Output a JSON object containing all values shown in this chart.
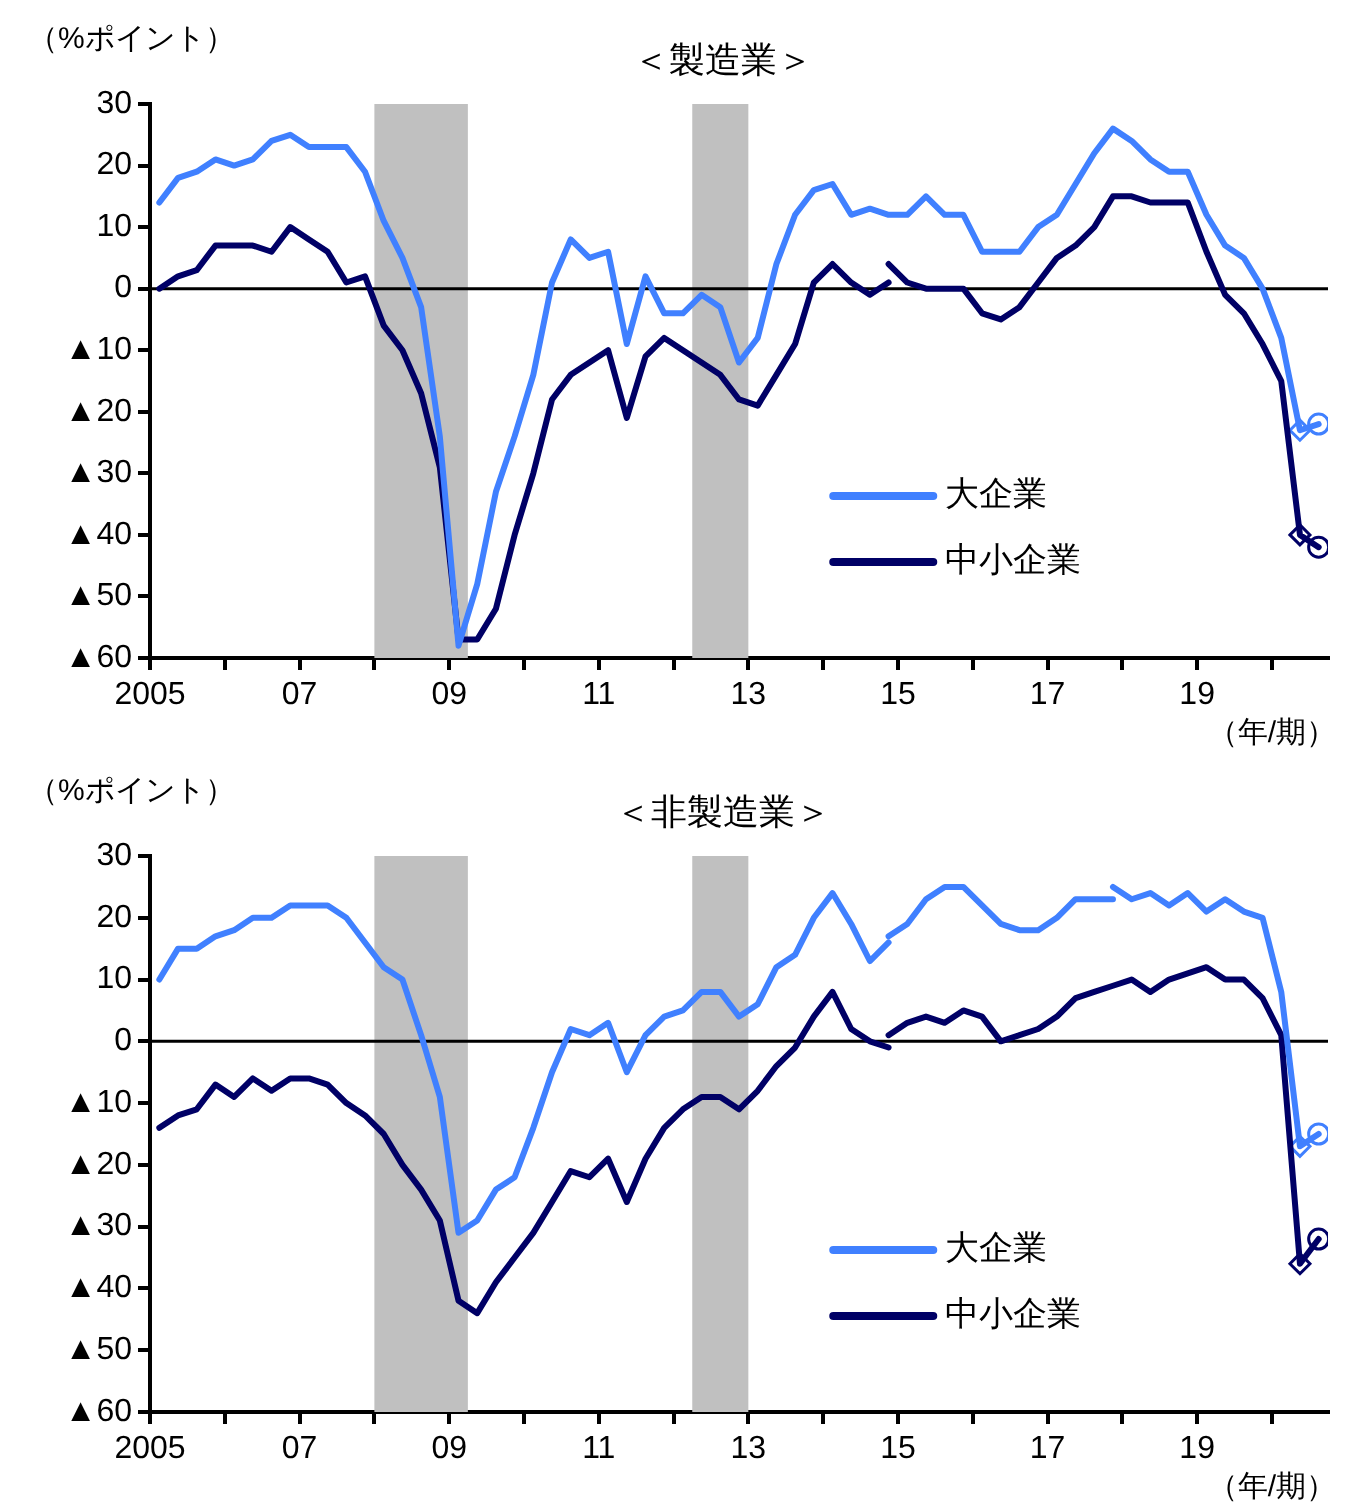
{
  "chart_data": [
    {
      "type": "line",
      "title": "＜製造業＞",
      "ylabel": "（%ポイント）",
      "xlabel": "（年/期）",
      "legend": "bottom right",
      "xlim": [
        2005,
        2020.75
      ],
      "xticks": [
        {
          "value": 2005,
          "label": "2005"
        },
        {
          "value": 2006,
          "label": null
        },
        {
          "value": 2007,
          "label": "07"
        },
        {
          "value": 2008,
          "label": null
        },
        {
          "value": 2009,
          "label": "09"
        },
        {
          "value": 2010,
          "label": null
        },
        {
          "value": 2011,
          "label": "11"
        },
        {
          "value": 2012,
          "label": null
        },
        {
          "value": 2013,
          "label": "13"
        },
        {
          "value": 2014,
          "label": null
        },
        {
          "value": 2015,
          "label": "15"
        },
        {
          "value": 2016,
          "label": null
        },
        {
          "value": 2017,
          "label": "17"
        },
        {
          "value": 2018,
          "label": null
        },
        {
          "value": 2019,
          "label": "19"
        },
        {
          "value": 2020,
          "label": null
        }
      ],
      "ylim": [
        -60,
        30
      ],
      "yticks": [
        30,
        20,
        10,
        0,
        {
          "value": -10,
          "label": "▲10"
        },
        {
          "value": -20,
          "label": "▲20"
        },
        {
          "value": -30,
          "label": "▲30"
        },
        {
          "value": -40,
          "label": "▲40"
        },
        {
          "value": -50,
          "label": "▲50"
        },
        {
          "value": -60,
          "label": "▲60"
        }
      ],
      "ref_lines": [
        {
          "axis": "y",
          "value": 0,
          "color": "#000000"
        }
      ],
      "bands": [
        {
          "axis": "x",
          "from": 2008,
          "to": 2009.25,
          "color": "#c0c0c0"
        },
        {
          "axis": "x",
          "from": 2012.25,
          "to": 2013,
          "color": "#c0c0c0"
        }
      ],
      "series": [
        {
          "name": "大企業",
          "color": "#4080ff",
          "x": [
            2005.125,
            2005.375,
            2005.625,
            2005.875,
            2006.125,
            2006.375,
            2006.625,
            2006.875,
            2007.125,
            2007.375,
            2007.625,
            2007.875,
            2008.125,
            2008.375,
            2008.625,
            2008.875,
            2009.125,
            2009.375,
            2009.625,
            2009.875,
            2010.125,
            2010.375,
            2010.625,
            2010.875,
            2011.125,
            2011.375,
            2011.625,
            2011.875,
            2012.125,
            2012.375,
            2012.625,
            2012.875,
            2013.125,
            2013.375,
            2013.625,
            2013.875,
            2014.125,
            2014.375,
            2014.625,
            2014.875,
            2015.125,
            2015.375,
            2015.625,
            2015.875,
            2016.125,
            2016.375,
            2016.625,
            2016.875,
            2017.125,
            2017.375,
            2017.625,
            2017.875,
            2018.125,
            2018.375,
            2018.625,
            2018.875,
            2019.125,
            2019.375,
            2019.625,
            2019.875,
            2020.125,
            2020.375,
            2020.625
          ],
          "values": [
            14,
            18,
            19,
            21,
            20,
            21,
            24,
            25,
            23,
            23,
            23,
            19,
            11,
            5,
            -3,
            -24,
            -58,
            -48,
            -33,
            -24,
            -14,
            1,
            8,
            5,
            6,
            -9,
            2,
            -4,
            -4,
            -1,
            -3,
            -12,
            -8,
            4,
            12,
            16,
            17,
            12,
            13,
            12,
            12,
            15,
            12,
            12,
            6,
            6,
            6,
            10,
            12,
            17,
            22,
            26,
            24,
            21,
            19,
            19,
            12,
            7,
            5,
            0,
            -8,
            -23,
            -22
          ]
        },
        {
          "name": "中小企業",
          "color": "#000066",
          "x": [
            2005.125,
            2005.375,
            2005.625,
            2005.875,
            2006.125,
            2006.375,
            2006.625,
            2006.875,
            2007.125,
            2007.375,
            2007.625,
            2007.875,
            2008.125,
            2008.375,
            2008.625,
            2008.875,
            2009.125,
            2009.375,
            2009.625,
            2009.875,
            2010.125,
            2010.375,
            2010.625,
            2010.875,
            2011.125,
            2011.375,
            2011.625,
            2011.875,
            2012.125,
            2012.375,
            2012.625,
            2012.875,
            2013.125,
            2013.375,
            2013.625,
            2013.875,
            2014.125,
            2014.375,
            2014.625,
            2014.875
          ],
          "values": [
            0,
            2,
            3,
            7,
            7,
            7,
            6,
            10,
            8,
            6,
            1,
            2,
            -6,
            -10,
            -17,
            -29,
            -57,
            -57,
            -52,
            -40,
            -30,
            -18,
            -14,
            -12,
            -10,
            -21,
            -11,
            -8,
            -10,
            -12,
            -14,
            -18,
            -19,
            -14,
            -9,
            1,
            4,
            1,
            -1,
            1
          ]
        },
        {
          "color": "#000066",
          "x": [
            2014.875,
            2015.125,
            2015.375,
            2015.625,
            2015.875,
            2016.125,
            2016.375,
            2016.625,
            2016.875,
            2017.125,
            2017.375,
            2017.625,
            2017.875,
            2018.125,
            2018.375,
            2018.625,
            2018.875,
            2019.125,
            2019.375,
            2019.625,
            2019.875,
            2020.125,
            2020.375,
            2020.625
          ],
          "values": [
            4,
            1,
            0,
            0,
            0,
            -4,
            -5,
            -3,
            1,
            5,
            7,
            10,
            15,
            15,
            14,
            14,
            14,
            6,
            -1,
            -4,
            -9,
            -15,
            -40,
            -42
          ]
        },
        {
          "type": "scatter",
          "marker": "diamond",
          "colors": [
            "#4080ff",
            "#000066"
          ],
          "x": [
            2020.375,
            2020.375
          ],
          "values": [
            -23,
            -40
          ]
        },
        {
          "type": "scatter",
          "marker": "circle",
          "colors": [
            "#4080ff",
            "#000066"
          ],
          "x": [
            2020.625,
            2020.625
          ],
          "values": [
            -22,
            -42
          ]
        }
      ]
    },
    {
      "type": "line",
      "title": "＜非製造業＞",
      "ylabel": "（%ポイント）",
      "xlabel": "（年/期）",
      "legend": "bottom right",
      "xlim": [
        2005,
        2020.75
      ],
      "xticks": [
        {
          "value": 2005,
          "label": "2005"
        },
        {
          "value": 2006,
          "label": null
        },
        {
          "value": 2007,
          "label": "07"
        },
        {
          "value": 2008,
          "label": null
        },
        {
          "value": 2009,
          "label": "09"
        },
        {
          "value": 2010,
          "label": null
        },
        {
          "value": 2011,
          "label": "11"
        },
        {
          "value": 2012,
          "label": null
        },
        {
          "value": 2013,
          "label": "13"
        },
        {
          "value": 2014,
          "label": null
        },
        {
          "value": 2015,
          "label": "15"
        },
        {
          "value": 2016,
          "label": null
        },
        {
          "value": 2017,
          "label": "17"
        },
        {
          "value": 2018,
          "label": null
        },
        {
          "value": 2019,
          "label": "19"
        },
        {
          "value": 2020,
          "label": null
        }
      ],
      "ylim": [
        -60,
        30
      ],
      "yticks": [
        30,
        20,
        10,
        0,
        {
          "value": -10,
          "label": "▲10"
        },
        {
          "value": -20,
          "label": "▲20"
        },
        {
          "value": -30,
          "label": "▲30"
        },
        {
          "value": -40,
          "label": "▲40"
        },
        {
          "value": -50,
          "label": "▲50"
        },
        {
          "value": -60,
          "label": "▲60"
        }
      ],
      "ref_lines": [
        {
          "axis": "y",
          "value": 0,
          "color": "#000000"
        }
      ],
      "bands": [
        {
          "axis": "x",
          "from": 2008,
          "to": 2009.25,
          "color": "#c0c0c0"
        },
        {
          "axis": "x",
          "from": 2012.25,
          "to": 2013,
          "color": "#c0c0c0"
        }
      ],
      "series": [
        {
          "name": "大企業",
          "color": "#4080ff",
          "x": [
            2005.125,
            2005.375,
            2005.625,
            2005.875,
            2006.125,
            2006.375,
            2006.625,
            2006.875,
            2007.125,
            2007.375,
            2007.625,
            2007.875,
            2008.125,
            2008.375,
            2008.625,
            2008.875,
            2009.125,
            2009.375,
            2009.625,
            2009.875,
            2010.125,
            2010.375,
            2010.625,
            2010.875,
            2011.125,
            2011.375,
            2011.625,
            2011.875,
            2012.125,
            2012.375,
            2012.625,
            2012.875,
            2013.125,
            2013.375,
            2013.625,
            2013.875,
            2014.125,
            2014.375,
            2014.625,
            2014.875
          ],
          "values": [
            10,
            15,
            15,
            17,
            18,
            20,
            20,
            22,
            22,
            22,
            20,
            16,
            12,
            10,
            1,
            -9,
            -31,
            -29,
            -24,
            -22,
            -14,
            -5,
            2,
            1,
            3,
            -5,
            1,
            4,
            5,
            8,
            8,
            4,
            6,
            12,
            14,
            20,
            24,
            19,
            13,
            16
          ]
        },
        {
          "name": "中小企業",
          "color": "#000066",
          "x": [
            2005.125,
            2005.375,
            2005.625,
            2005.875,
            2006.125,
            2006.375,
            2006.625,
            2006.875,
            2007.125,
            2007.375,
            2007.625,
            2007.875,
            2008.125,
            2008.375,
            2008.625,
            2008.875,
            2009.125,
            2009.375,
            2009.625,
            2009.875,
            2010.125,
            2010.375,
            2010.625,
            2010.875,
            2011.125,
            2011.375,
            2011.625,
            2011.875,
            2012.125,
            2012.375,
            2012.625,
            2012.875,
            2013.125,
            2013.375,
            2013.625,
            2013.875,
            2014.125,
            2014.375,
            2014.625,
            2014.875
          ],
          "values": [
            -14,
            -12,
            -11,
            -7,
            -9,
            -6,
            -8,
            -6,
            -6,
            -7,
            -10,
            -12,
            -15,
            -20,
            -24,
            -29,
            -42,
            -44,
            -39,
            -35,
            -31,
            -26,
            -21,
            -22,
            -19,
            -26,
            -19,
            -14,
            -11,
            -9,
            -9,
            -11,
            -8,
            -4,
            -1,
            4,
            8,
            2,
            0,
            -1
          ]
        },
        {
          "color": "#4080ff",
          "x": [
            2014.875,
            2015.125,
            2015.375,
            2015.625,
            2015.875,
            2016.125,
            2016.375,
            2016.625,
            2016.875,
            2017.125,
            2017.375,
            2017.625,
            2017.875
          ],
          "values": [
            17,
            19,
            23,
            25,
            25,
            22,
            19,
            18,
            18,
            20,
            23,
            23,
            23
          ]
        },
        {
          "color": "#4080ff",
          "x": [
            2017.875,
            2018.125,
            2018.375,
            2018.625,
            2018.875,
            2019.125,
            2019.375,
            2019.625,
            2019.875,
            2020.125,
            2020.375,
            2020.625
          ],
          "values": [
            25,
            23,
            24,
            22,
            24,
            21,
            23,
            21,
            20,
            8,
            -17,
            -15
          ]
        },
        {
          "color": "#000066",
          "x": [
            2014.875,
            2015.125,
            2015.375,
            2015.625,
            2015.875,
            2016.125,
            2016.375,
            2016.625,
            2016.875,
            2017.125,
            2017.375,
            2017.625,
            2017.875,
            2018.125,
            2018.375,
            2018.625,
            2018.875,
            2019.125,
            2019.375,
            2019.625,
            2019.875,
            2020.125,
            2020.375,
            2020.625
          ],
          "values": [
            1,
            3,
            4,
            3,
            5,
            4,
            0,
            1,
            2,
            4,
            7,
            8,
            9,
            10,
            8,
            10,
            11,
            12,
            10,
            10,
            7,
            1,
            -36,
            -32
          ]
        },
        {
          "type": "scatter",
          "marker": "diamond",
          "colors": [
            "#4080ff",
            "#000066"
          ],
          "x": [
            2020.375,
            2020.375
          ],
          "values": [
            -17,
            -36
          ]
        },
        {
          "type": "scatter",
          "marker": "circle",
          "colors": [
            "#4080ff",
            "#000066"
          ],
          "x": [
            2020.625,
            2020.625
          ],
          "values": [
            -15,
            -32
          ]
        }
      ]
    }
  ]
}
